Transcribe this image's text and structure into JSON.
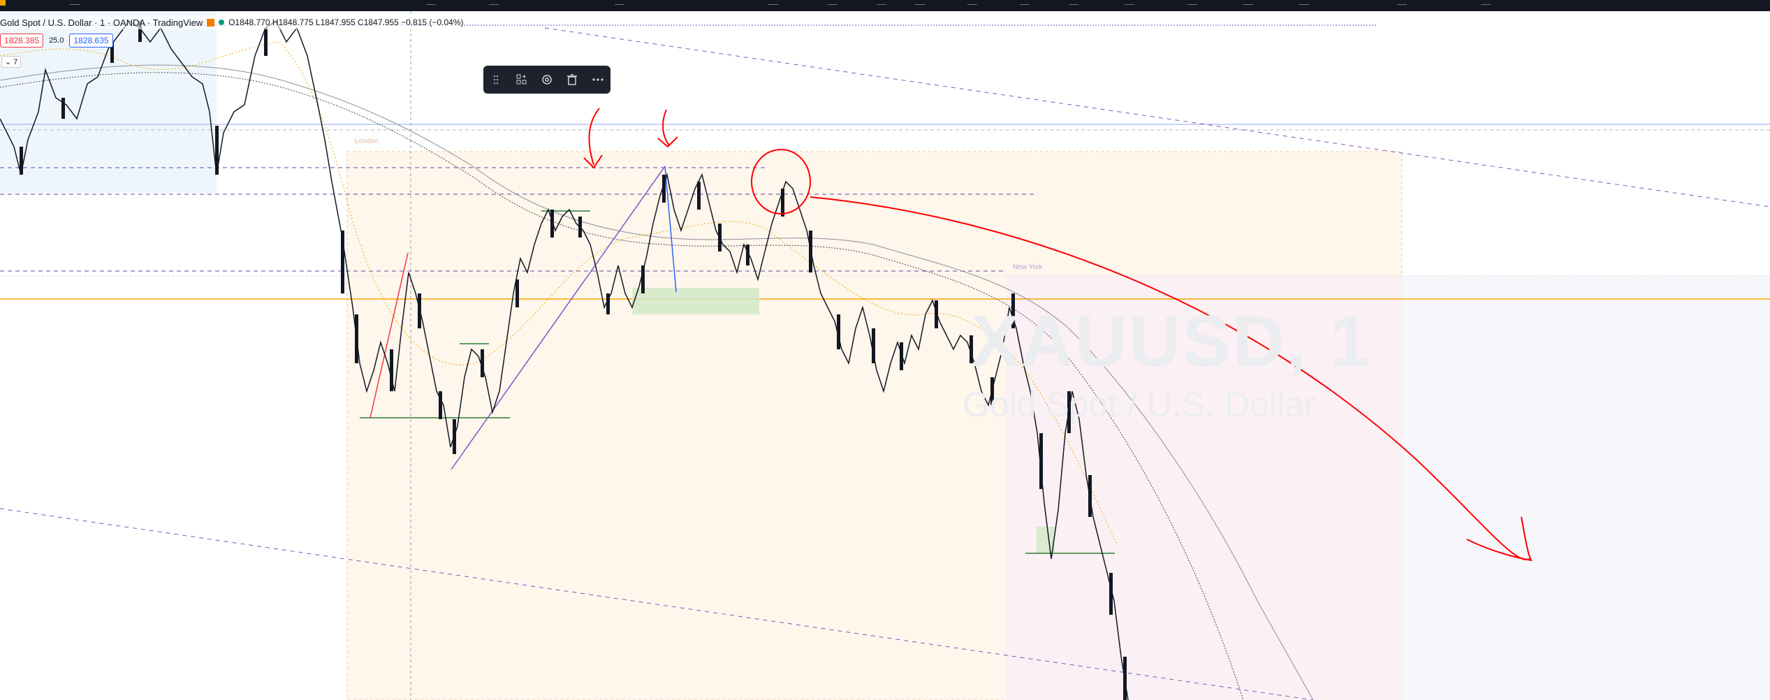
{
  "header": {
    "symbol_title": "Gold Spot / U.S. Dollar · 1 · OANDA · TradingView",
    "ohlc": "O1848.770 H1848.775 L1847.955 C1847.955 −0.815 (−0.04%)"
  },
  "order_panel": {
    "sell_price": "1828.385",
    "spread": "25.0",
    "buy_price": "1828.635"
  },
  "indicators": {
    "toggle_label": "⌄ 7"
  },
  "drawing_toolbar": {
    "items": [
      "drag-handle-icon",
      "template-icon",
      "settings-icon",
      "delete-icon",
      "more-icon"
    ]
  },
  "sessions": {
    "london_label": "London",
    "newyork_label": "New York"
  },
  "watermark": {
    "symbol": "XAUUSD, 1",
    "description": "Gold Spot / U.S. Dollar"
  },
  "colors": {
    "annotation_red": "#ff0000",
    "trendline_purple": "#7e57c2",
    "support_green": "#2e7d32",
    "orange_level": "#f7a600",
    "london_fill": "#fff6ec",
    "newyork_fill": "#fbf1f4"
  }
}
